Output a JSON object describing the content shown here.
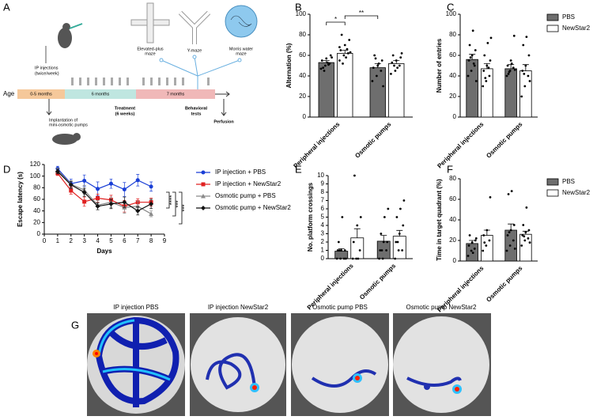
{
  "diagram": {
    "panel": "A",
    "ip_injections": [
      "IP injections",
      "(twice/week)"
    ],
    "mazes": [
      [
        "Elevated-plus",
        "maze"
      ],
      [
        "Y-maze"
      ],
      [
        "Morris water",
        "maze"
      ]
    ],
    "age": "Age",
    "periods": [
      "0-5 months",
      "6 months",
      "7 months"
    ],
    "treatment": [
      "Treatment",
      "(6 weeks)"
    ],
    "behavioral": [
      "Behavioral",
      "tests"
    ],
    "perfusion": "Perfusion",
    "implantation": [
      "Implantation of",
      "mini-osmotic pumps"
    ]
  },
  "chart_data": [
    {
      "type": "bar",
      "panel": "B",
      "ylabel": "Alternation (%)",
      "categories": [
        "Peripheral injections",
        "Osmotic pumps"
      ],
      "ylim": [
        0,
        100
      ],
      "yticks": [
        0,
        20,
        40,
        60,
        80,
        100
      ],
      "legend": false,
      "annotations": [
        "*",
        "**"
      ],
      "series": [
        {
          "color": "#6e6e6e",
          "values": [
            53,
            48
          ],
          "errors": [
            2,
            4
          ],
          "points": [
            [
              47,
              50,
              52,
              55,
              57,
              60,
              48,
              53,
              58,
              45,
              51
            ],
            [
              35,
              40,
              45,
              48,
              50,
              55,
              60,
              52,
              30,
              57
            ]
          ]
        },
        {
          "color": "#ffffff",
          "values": [
            62,
            52
          ],
          "errors": [
            3,
            3
          ],
          "points": [
            [
              55,
              60,
              62,
              65,
              70,
              75,
              80,
              58,
              63,
              52,
              66,
              68
            ],
            [
              42,
              45,
              50,
              53,
              55,
              58,
              60,
              48,
              62,
              50
            ]
          ]
        }
      ]
    },
    {
      "type": "bar",
      "panel": "C",
      "ylabel": "Number of entries",
      "categories": [
        "Peripheral injections",
        "Osmotic pumps"
      ],
      "ylim": [
        0,
        100
      ],
      "yticks": [
        0,
        20,
        40,
        60,
        80,
        100
      ],
      "legend": true,
      "series": [
        {
          "name": "PBS",
          "color": "#6e6e6e",
          "values": [
            56,
            47
          ],
          "errors": [
            5,
            4
          ],
          "points": [
            [
              40,
              45,
              50,
              55,
              60,
              65,
              70,
              84,
              35,
              58,
              52
            ],
            [
              40,
              45,
              48,
              50,
              55,
              79,
              42,
              52,
              46,
              44
            ]
          ]
        },
        {
          "name": "NewStar2",
          "color": "#ffffff",
          "values": [
            47,
            45
          ],
          "errors": [
            5,
            6
          ],
          "points": [
            [
              30,
              35,
              40,
              45,
              50,
              55,
              60,
              72,
              77,
              38,
              48
            ],
            [
              20,
              30,
              40,
              45,
              50,
              60,
              70,
              78,
              35,
              42
            ]
          ]
        }
      ]
    },
    {
      "type": "line",
      "panel": "D",
      "ylabel": "Escape latency (s)",
      "xlabel": "Days",
      "x": [
        1,
        2,
        3,
        4,
        5,
        6,
        7,
        8
      ],
      "xlim": [
        0,
        9
      ],
      "xticks": [
        0,
        1,
        2,
        3,
        4,
        5,
        6,
        7,
        8,
        9
      ],
      "ylim": [
        0,
        120
      ],
      "yticks": [
        0,
        20,
        40,
        60,
        80,
        100,
        120
      ],
      "legend": true,
      "annotations": [
        "****",
        "***",
        "***"
      ],
      "series": [
        {
          "name": "IP injection + PBS",
          "color": "#1a3fd6",
          "marker": "circle",
          "values": [
            113,
            87,
            92,
            78,
            87,
            77,
            93,
            82
          ],
          "errors": [
            4,
            8,
            10,
            12,
            8,
            12,
            10,
            8
          ]
        },
        {
          "name": "IP injection + NewStar2",
          "color": "#e02020",
          "marker": "square",
          "values": [
            105,
            75,
            56,
            62,
            59,
            48,
            55,
            55
          ],
          "errors": [
            4,
            6,
            8,
            7,
            8,
            10,
            6,
            7
          ]
        },
        {
          "name": "Osmotic pump + PBS",
          "color": "#8a8a8a",
          "marker": "triangle",
          "values": [
            110,
            86,
            76,
            50,
            55,
            46,
            48,
            35
          ],
          "errors": [
            4,
            6,
            8,
            8,
            9,
            10,
            9,
            5
          ]
        },
        {
          "name": "Osmotic pump + NewStar2",
          "color": "#111111",
          "marker": "diamond",
          "values": [
            108,
            85,
            72,
            48,
            52,
            55,
            40,
            52
          ],
          "errors": [
            4,
            6,
            7,
            6,
            8,
            9,
            7,
            8
          ]
        }
      ]
    },
    {
      "type": "bar",
      "panel": "E",
      "ylabel": "No. platform crossings",
      "categories": [
        "Peripheral injections",
        "Osmotic pumps"
      ],
      "ylim": [
        0,
        10
      ],
      "yticks": [
        0,
        1,
        2,
        3,
        4,
        5,
        6,
        7,
        8,
        9,
        10
      ],
      "legend": false,
      "series": [
        {
          "color": "#6e6e6e",
          "values": [
            0.9,
            2.1
          ],
          "errors": [
            0.3,
            0.7
          ],
          "points": [
            [
              0,
              0,
              0,
              1,
              1,
              1,
              2,
              5,
              0,
              1
            ],
            [
              0,
              0,
              1,
              1,
              2,
              2,
              3,
              5,
              6,
              1
            ]
          ]
        },
        {
          "color": "#ffffff",
          "values": [
            2.5,
            2.7
          ],
          "errors": [
            1.1,
            0.7
          ],
          "points": [
            [
              0,
              0,
              1,
              2,
              4,
              5,
              10,
              0
            ],
            [
              0,
              1,
              1,
              2,
              3,
              4,
              5,
              6,
              7,
              2
            ]
          ]
        }
      ]
    },
    {
      "type": "bar",
      "panel": "F",
      "ylabel": "Time in target quadrant (%)",
      "categories": [
        "Peripheral injections",
        "Osmotic pumps"
      ],
      "ylim": [
        0,
        80
      ],
      "yticks": [
        0,
        20,
        40,
        60,
        80
      ],
      "legend": true,
      "series": [
        {
          "name": "PBS",
          "color": "#6e6e6e",
          "values": [
            17,
            30
          ],
          "errors": [
            3,
            6
          ],
          "points": [
            [
              5,
              10,
              12,
              15,
              18,
              20,
              25,
              8,
              22
            ],
            [
              10,
              15,
              20,
              25,
              30,
              35,
              65,
              68,
              12,
              28
            ]
          ]
        },
        {
          "name": "NewStar2",
          "color": "#ffffff",
          "values": [
            25,
            26
          ],
          "errors": [
            5,
            3
          ],
          "points": [
            [
              10,
              15,
              20,
              25,
              30,
              62,
              18
            ],
            [
              15,
              20,
              22,
              25,
              28,
              30,
              35,
              52,
              18,
              24
            ]
          ]
        }
      ]
    }
  ],
  "heatmaps": {
    "panel": "G",
    "titles": [
      "IP injection PBS",
      "IP injection NewStar2",
      "Osmotic pump PBS",
      "Osmotic pump NewStar2"
    ]
  }
}
